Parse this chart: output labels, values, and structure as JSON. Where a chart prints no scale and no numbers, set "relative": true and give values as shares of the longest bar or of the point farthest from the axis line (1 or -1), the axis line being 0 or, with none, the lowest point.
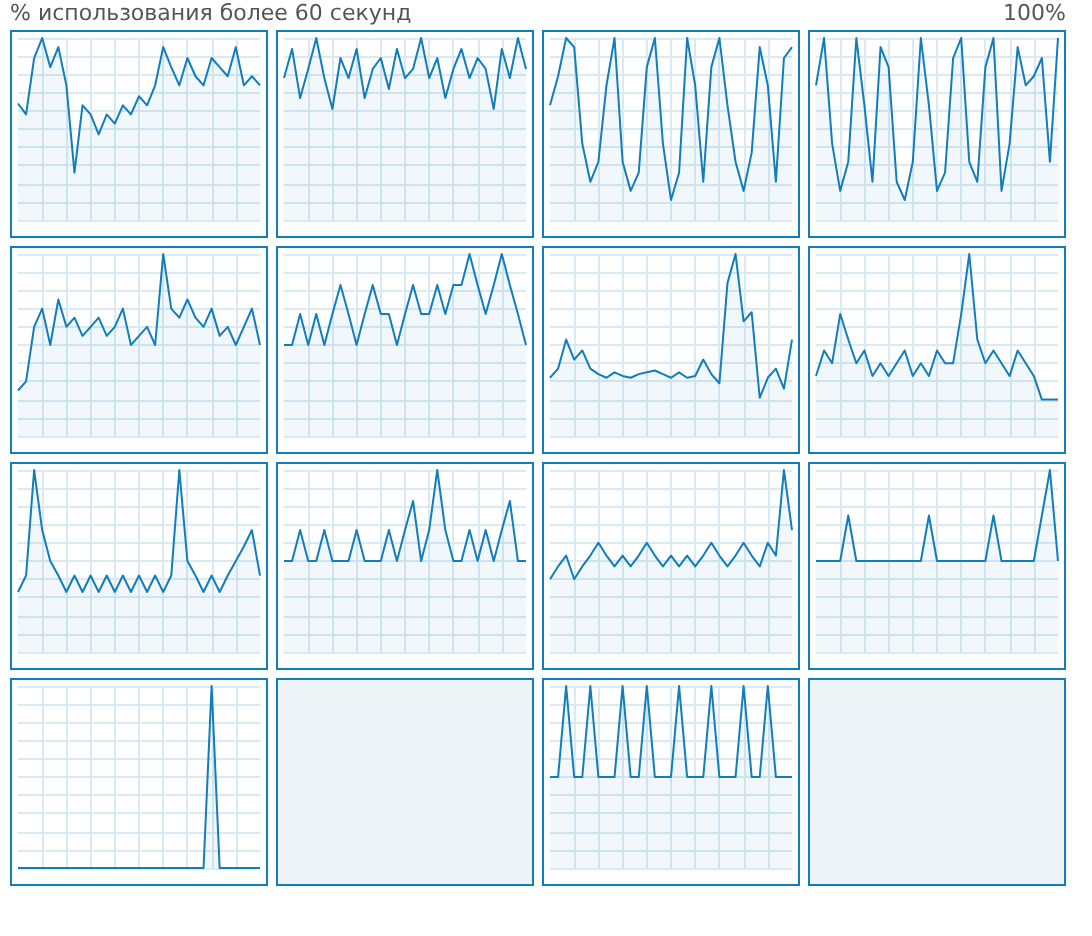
{
  "chart_data": [
    {
      "type": "area",
      "title": "% использования более 60 секунд",
      "relative": true,
      "grid": true,
      "marker": "none",
      "categories": [
        null,
        null,
        null,
        null,
        null,
        null,
        null,
        null,
        null,
        null,
        null,
        null,
        null,
        null,
        null,
        null,
        null,
        null,
        null,
        null,
        null,
        null,
        null,
        null,
        null,
        null,
        null,
        null,
        null,
        null,
        null
      ],
      "series": [
        {
          "color": "#117dbb",
          "values": [
            0.64,
            0.58,
            0.89,
            1,
            0.84,
            0.95,
            0.74,
            0.26,
            0.63,
            0.58,
            0.47,
            0.58,
            0.53,
            0.63,
            0.58,
            0.68,
            0.63,
            0.74,
            0.95,
            0.84,
            0.74,
            0.89,
            0.79,
            0.74,
            0.89,
            0.84,
            0.79,
            0.95,
            0.74,
            0.79,
            0.74
          ]
        }
      ]
    },
    {
      "type": "area",
      "relative": true,
      "grid": true,
      "marker": "none",
      "categories": [
        null,
        null,
        null,
        null,
        null,
        null,
        null,
        null,
        null,
        null,
        null,
        null,
        null,
        null,
        null,
        null,
        null,
        null,
        null,
        null,
        null,
        null,
        null,
        null,
        null,
        null,
        null,
        null,
        null,
        null,
        null
      ],
      "series": [
        {
          "color": "#117dbb",
          "values": [
            0.78,
            0.94,
            0.67,
            0.83,
            1,
            0.78,
            0.61,
            0.89,
            0.78,
            0.94,
            0.67,
            0.83,
            0.89,
            0.72,
            0.94,
            0.78,
            0.83,
            1,
            0.78,
            0.89,
            0.67,
            0.83,
            0.94,
            0.78,
            0.89,
            0.83,
            0.61,
            0.94,
            0.78,
            1,
            0.83
          ]
        }
      ]
    },
    {
      "type": "area",
      "relative": true,
      "grid": true,
      "marker": "none",
      "categories": [
        null,
        null,
        null,
        null,
        null,
        null,
        null,
        null,
        null,
        null,
        null,
        null,
        null,
        null,
        null,
        null,
        null,
        null,
        null,
        null,
        null,
        null,
        null,
        null,
        null,
        null,
        null,
        null,
        null,
        null,
        null
      ],
      "series": [
        {
          "color": "#117dbb",
          "values": [
            0.63,
            0.79,
            1,
            0.95,
            0.42,
            0.21,
            0.32,
            0.74,
            1,
            0.32,
            0.16,
            0.26,
            0.84,
            1,
            0.42,
            0.11,
            0.26,
            1,
            0.74,
            0.21,
            0.84,
            1,
            0.63,
            0.32,
            0.16,
            0.37,
            0.95,
            0.74,
            0.21,
            0.89,
            0.95
          ]
        }
      ]
    },
    {
      "type": "area",
      "annotations": [
        "100%"
      ],
      "relative": true,
      "grid": true,
      "marker": "none",
      "categories": [
        null,
        null,
        null,
        null,
        null,
        null,
        null,
        null,
        null,
        null,
        null,
        null,
        null,
        null,
        null,
        null,
        null,
        null,
        null,
        null,
        null,
        null,
        null,
        null,
        null,
        null,
        null,
        null,
        null,
        null,
        null
      ],
      "series": [
        {
          "color": "#117dbb",
          "values": [
            0.74,
            1,
            0.42,
            0.16,
            0.32,
            1,
            0.63,
            0.21,
            0.95,
            0.84,
            0.21,
            0.11,
            0.32,
            1,
            0.63,
            0.16,
            0.26,
            0.89,
            1,
            0.32,
            0.21,
            0.84,
            1,
            0.16,
            0.42,
            0.95,
            0.74,
            0.79,
            0.89,
            0.32,
            1
          ]
        }
      ]
    },
    {
      "type": "area",
      "relative": true,
      "grid": true,
      "marker": "none",
      "categories": [
        null,
        null,
        null,
        null,
        null,
        null,
        null,
        null,
        null,
        null,
        null,
        null,
        null,
        null,
        null,
        null,
        null,
        null,
        null,
        null,
        null,
        null,
        null,
        null,
        null,
        null,
        null,
        null,
        null,
        null,
        null
      ],
      "series": [
        {
          "color": "#117dbb",
          "values": [
            0.25,
            0.3,
            0.6,
            0.7,
            0.5,
            0.75,
            0.6,
            0.65,
            0.55,
            0.6,
            0.65,
            0.55,
            0.6,
            0.7,
            0.5,
            0.55,
            0.6,
            0.5,
            1,
            0.7,
            0.65,
            0.75,
            0.65,
            0.6,
            0.7,
            0.55,
            0.6,
            0.5,
            0.6,
            0.7,
            0.5
          ]
        }
      ]
    },
    {
      "type": "area",
      "relative": true,
      "grid": true,
      "marker": "none",
      "categories": [
        null,
        null,
        null,
        null,
        null,
        null,
        null,
        null,
        null,
        null,
        null,
        null,
        null,
        null,
        null,
        null,
        null,
        null,
        null,
        null,
        null,
        null,
        null,
        null,
        null,
        null,
        null,
        null,
        null,
        null,
        null
      ],
      "series": [
        {
          "color": "#117dbb",
          "values": [
            0.5,
            0.5,
            0.67,
            0.5,
            0.67,
            0.5,
            0.67,
            0.83,
            0.67,
            0.5,
            0.67,
            0.83,
            0.67,
            0.67,
            0.5,
            0.67,
            0.83,
            0.67,
            0.67,
            0.83,
            0.67,
            0.83,
            0.83,
            1,
            0.83,
            0.67,
            0.83,
            1,
            0.83,
            0.67,
            0.5
          ]
        }
      ]
    },
    {
      "type": "area",
      "relative": true,
      "grid": true,
      "marker": "none",
      "categories": [
        null,
        null,
        null,
        null,
        null,
        null,
        null,
        null,
        null,
        null,
        null,
        null,
        null,
        null,
        null,
        null,
        null,
        null,
        null,
        null,
        null,
        null,
        null,
        null,
        null,
        null,
        null,
        null,
        null,
        null,
        null
      ],
      "series": [
        {
          "color": "#117dbb",
          "values": [
            0.32,
            0.37,
            0.53,
            0.42,
            0.47,
            0.37,
            0.34,
            0.32,
            0.35,
            0.33,
            0.32,
            0.34,
            0.35,
            0.36,
            0.34,
            0.32,
            0.35,
            0.32,
            0.33,
            0.42,
            0.34,
            0.29,
            0.84,
            1,
            0.63,
            0.68,
            0.21,
            0.32,
            0.37,
            0.26,
            0.53
          ]
        }
      ]
    },
    {
      "type": "area",
      "relative": true,
      "grid": true,
      "marker": "none",
      "categories": [
        null,
        null,
        null,
        null,
        null,
        null,
        null,
        null,
        null,
        null,
        null,
        null,
        null,
        null,
        null,
        null,
        null,
        null,
        null,
        null,
        null,
        null,
        null,
        null,
        null,
        null,
        null,
        null,
        null,
        null,
        null
      ],
      "series": [
        {
          "color": "#117dbb",
          "values": [
            0.33,
            0.47,
            0.4,
            0.67,
            0.53,
            0.4,
            0.47,
            0.33,
            0.4,
            0.33,
            0.4,
            0.47,
            0.33,
            0.4,
            0.33,
            0.47,
            0.4,
            0.4,
            0.67,
            1,
            0.53,
            0.4,
            0.47,
            0.4,
            0.33,
            0.47,
            0.4,
            0.33,
            0.2,
            0.2,
            0.2
          ]
        }
      ]
    },
    {
      "type": "area",
      "relative": true,
      "grid": true,
      "marker": "none",
      "categories": [
        null,
        null,
        null,
        null,
        null,
        null,
        null,
        null,
        null,
        null,
        null,
        null,
        null,
        null,
        null,
        null,
        null,
        null,
        null,
        null,
        null,
        null,
        null,
        null,
        null,
        null,
        null,
        null,
        null,
        null,
        null
      ],
      "series": [
        {
          "color": "#117dbb",
          "values": [
            0.33,
            0.42,
            1,
            0.67,
            0.5,
            0.42,
            0.33,
            0.42,
            0.33,
            0.42,
            0.33,
            0.42,
            0.33,
            0.42,
            0.33,
            0.42,
            0.33,
            0.42,
            0.33,
            0.42,
            1,
            0.5,
            0.42,
            0.33,
            0.42,
            0.33,
            0.42,
            0.5,
            0.58,
            0.67,
            0.42
          ]
        }
      ]
    },
    {
      "type": "area",
      "relative": true,
      "grid": true,
      "marker": "none",
      "categories": [
        null,
        null,
        null,
        null,
        null,
        null,
        null,
        null,
        null,
        null,
        null,
        null,
        null,
        null,
        null,
        null,
        null,
        null,
        null,
        null,
        null,
        null,
        null,
        null,
        null,
        null,
        null,
        null,
        null,
        null,
        null
      ],
      "series": [
        {
          "color": "#117dbb",
          "values": [
            0.5,
            0.5,
            0.67,
            0.5,
            0.5,
            0.67,
            0.5,
            0.5,
            0.5,
            0.67,
            0.5,
            0.5,
            0.5,
            0.67,
            0.5,
            0.67,
            0.83,
            0.5,
            0.67,
            1,
            0.67,
            0.5,
            0.5,
            0.67,
            0.5,
            0.67,
            0.5,
            0.67,
            0.83,
            0.5,
            0.5
          ]
        }
      ]
    },
    {
      "type": "area",
      "relative": true,
      "grid": true,
      "marker": "none",
      "categories": [
        null,
        null,
        null,
        null,
        null,
        null,
        null,
        null,
        null,
        null,
        null,
        null,
        null,
        null,
        null,
        null,
        null,
        null,
        null,
        null,
        null,
        null,
        null,
        null,
        null,
        null,
        null,
        null,
        null,
        null,
        null
      ],
      "series": [
        {
          "color": "#117dbb",
          "values": [
            0.4,
            0.47,
            0.53,
            0.4,
            0.47,
            0.53,
            0.6,
            0.53,
            0.47,
            0.53,
            0.47,
            0.53,
            0.6,
            0.53,
            0.47,
            0.53,
            0.47,
            0.53,
            0.47,
            0.53,
            0.6,
            0.53,
            0.47,
            0.53,
            0.6,
            0.53,
            0.47,
            0.6,
            0.53,
            1,
            0.67
          ]
        }
      ]
    },
    {
      "type": "area",
      "relative": true,
      "grid": true,
      "marker": "none",
      "categories": [
        null,
        null,
        null,
        null,
        null,
        null,
        null,
        null,
        null,
        null,
        null,
        null,
        null,
        null,
        null,
        null,
        null,
        null,
        null,
        null,
        null,
        null,
        null,
        null,
        null,
        null,
        null,
        null,
        null,
        null,
        null
      ],
      "series": [
        {
          "color": "#117dbb",
          "values": [
            0.5,
            0.5,
            0.5,
            0.5,
            0.75,
            0.5,
            0.5,
            0.5,
            0.5,
            0.5,
            0.5,
            0.5,
            0.5,
            0.5,
            0.75,
            0.5,
            0.5,
            0.5,
            0.5,
            0.5,
            0.5,
            0.5,
            0.75,
            0.5,
            0.5,
            0.5,
            0.5,
            0.5,
            0.75,
            1,
            0.5
          ]
        }
      ]
    },
    {
      "type": "area",
      "relative": true,
      "grid": true,
      "marker": "none",
      "categories": [
        null,
        null,
        null,
        null,
        null,
        null,
        null,
        null,
        null,
        null,
        null,
        null,
        null,
        null,
        null,
        null,
        null,
        null,
        null,
        null,
        null,
        null,
        null,
        null,
        null,
        null,
        null,
        null,
        null,
        null,
        null
      ],
      "series": [
        {
          "color": "#117dbb",
          "values": [
            0,
            0,
            0,
            0,
            0,
            0,
            0,
            0,
            0,
            0,
            0,
            0,
            0,
            0,
            0,
            0,
            0,
            0,
            0,
            0,
            0,
            0,
            0,
            0,
            1,
            0,
            0,
            0,
            0,
            0,
            0
          ]
        }
      ]
    },
    {
      "type": "other"
    },
    {
      "type": "area",
      "relative": true,
      "grid": true,
      "marker": "none",
      "categories": [
        null,
        null,
        null,
        null,
        null,
        null,
        null,
        null,
        null,
        null,
        null,
        null,
        null,
        null,
        null,
        null,
        null,
        null,
        null,
        null,
        null,
        null,
        null,
        null,
        null,
        null,
        null,
        null,
        null,
        null,
        null
      ],
      "series": [
        {
          "color": "#117dbb",
          "values": [
            0.5,
            0.5,
            1,
            0.5,
            0.5,
            1,
            0.5,
            0.5,
            0.5,
            1,
            0.5,
            0.5,
            1,
            0.5,
            0.5,
            0.5,
            1,
            0.5,
            0.5,
            0.5,
            1,
            0.5,
            0.5,
            0.5,
            1,
            0.5,
            0.5,
            1,
            0.5,
            0.5,
            0.5
          ]
        }
      ]
    },
    {
      "type": "other"
    }
  ]
}
